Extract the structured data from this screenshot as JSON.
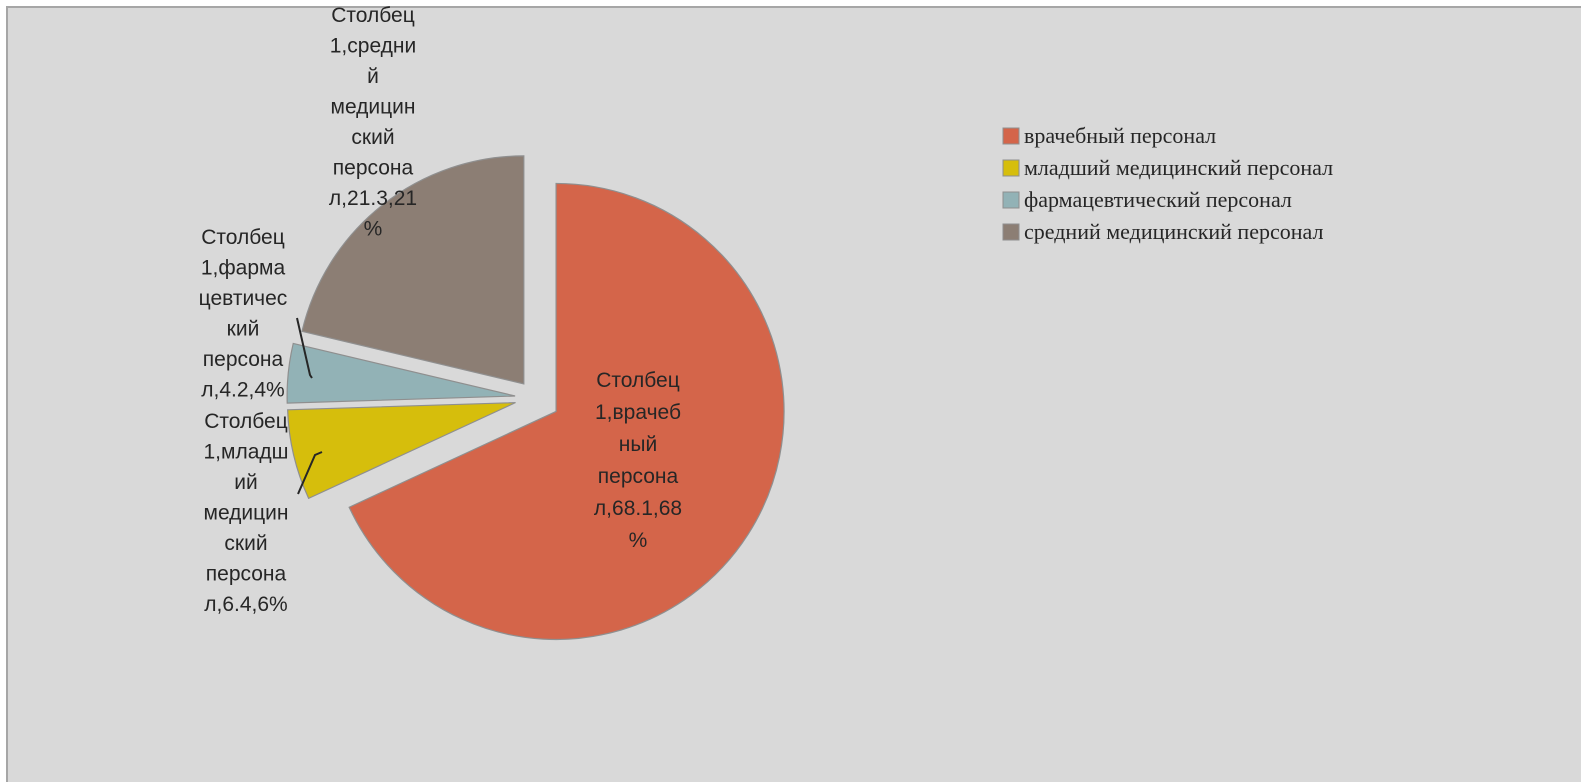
{
  "chart_data": {
    "type": "pie",
    "title": "",
    "series": [
      {
        "name": "Столбец 1",
        "values": [
          68.1,
          6.4,
          4.2,
          21.3
        ]
      }
    ],
    "categories": [
      "врачебный персонал",
      "младший медицинский персонал",
      "фармацевтический персонал",
      "средний медицинский персонал"
    ],
    "colors": [
      "#d4654a",
      "#d6be0c",
      "#92b2b6",
      "#8c7e74"
    ],
    "data_labels": [
      [
        "Столбец",
        "1,врачеб",
        "ный",
        "персона",
        "л,68.1,68",
        "%"
      ],
      [
        "Столбец",
        "1,младш",
        "ий",
        "медицин",
        "ский",
        "персона",
        "л,6.4,6%"
      ],
      [
        "Столбец",
        "1,фарма",
        "цевтичес",
        "кий",
        "персона",
        "л,4.2,4%"
      ],
      [
        "Столбец",
        "1,средни",
        "й",
        "медицин",
        "ский",
        "персона",
        "л,21.3,21",
        "%"
      ]
    ],
    "legend_position": "top-right",
    "exploded": true
  }
}
